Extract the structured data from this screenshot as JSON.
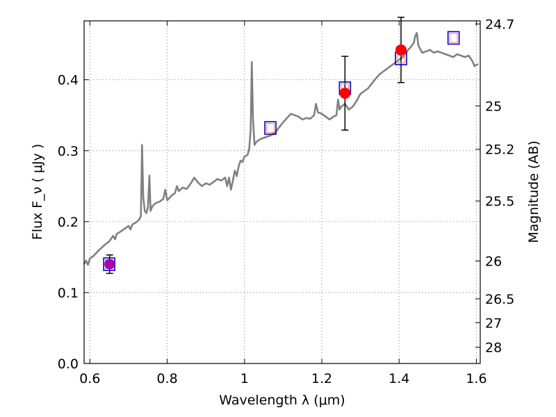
{
  "chart_data": {
    "type": "line",
    "xlabel": "Wavelength  λ (μm)",
    "ylabel": "Flux  F_ν  ( μJy )",
    "ylabel_right": "Magnitude (AB)",
    "xlim": [
      0.585,
      1.61
    ],
    "ylim": [
      0.0,
      0.483
    ],
    "grid": true,
    "x_ticks": [
      0.6,
      0.8,
      1.0,
      1.2,
      1.4,
      1.6
    ],
    "x_tick_labels": [
      "0.6",
      "0.8",
      "1",
      "1.2",
      "1.4",
      "1.6"
    ],
    "y_ticks": [
      0.0,
      0.1,
      0.2,
      0.3,
      0.4
    ],
    "y_tick_labels": [
      "0.0",
      "0.1",
      "0.2",
      "0.3",
      "0.4"
    ],
    "right_ticks": [
      {
        "label": "24.7",
        "flux": 0.4786
      },
      {
        "label": "25",
        "flux": 0.3631
      },
      {
        "label": "25.2",
        "flux": 0.302
      },
      {
        "label": "25.5",
        "flux": 0.2291
      },
      {
        "label": "26",
        "flux": 0.1445
      },
      {
        "label": "26.5",
        "flux": 0.0912
      },
      {
        "label": "27",
        "flux": 0.0575
      },
      {
        "label": "28",
        "flux": 0.0229
      }
    ],
    "colors": {
      "spectrum": "#808080",
      "observed": "#ff0000",
      "model_box": "#0000cc",
      "model_inner": "#ff8888",
      "blend": "#aa00aa",
      "errorbar": "#000000",
      "grid": "#888888"
    },
    "spectrum": [
      [
        0.585,
        0.14
      ],
      [
        0.59,
        0.145
      ],
      [
        0.595,
        0.139
      ],
      [
        0.6,
        0.148
      ],
      [
        0.61,
        0.152
      ],
      [
        0.62,
        0.158
      ],
      [
        0.63,
        0.163
      ],
      [
        0.64,
        0.168
      ],
      [
        0.65,
        0.172
      ],
      [
        0.655,
        0.176
      ],
      [
        0.66,
        0.18
      ],
      [
        0.665,
        0.175
      ],
      [
        0.67,
        0.183
      ],
      [
        0.68,
        0.186
      ],
      [
        0.69,
        0.19
      ],
      [
        0.7,
        0.194
      ],
      [
        0.705,
        0.189
      ],
      [
        0.71,
        0.196
      ],
      [
        0.72,
        0.199
      ],
      [
        0.728,
        0.203
      ],
      [
        0.732,
        0.208
      ],
      [
        0.735,
        0.308
      ],
      [
        0.738,
        0.235
      ],
      [
        0.742,
        0.215
      ],
      [
        0.746,
        0.212
      ],
      [
        0.75,
        0.22
      ],
      [
        0.754,
        0.265
      ],
      [
        0.757,
        0.215
      ],
      [
        0.762,
        0.222
      ],
      [
        0.77,
        0.226
      ],
      [
        0.78,
        0.228
      ],
      [
        0.79,
        0.232
      ],
      [
        0.795,
        0.245
      ],
      [
        0.8,
        0.23
      ],
      [
        0.81,
        0.236
      ],
      [
        0.82,
        0.24
      ],
      [
        0.825,
        0.25
      ],
      [
        0.83,
        0.243
      ],
      [
        0.84,
        0.248
      ],
      [
        0.85,
        0.246
      ],
      [
        0.86,
        0.253
      ],
      [
        0.87,
        0.262
      ],
      [
        0.88,
        0.255
      ],
      [
        0.89,
        0.25
      ],
      [
        0.9,
        0.254
      ],
      [
        0.91,
        0.252
      ],
      [
        0.92,
        0.256
      ],
      [
        0.93,
        0.26
      ],
      [
        0.94,
        0.258
      ],
      [
        0.95,
        0.262
      ],
      [
        0.955,
        0.25
      ],
      [
        0.96,
        0.262
      ],
      [
        0.965,
        0.245
      ],
      [
        0.97,
        0.258
      ],
      [
        0.975,
        0.272
      ],
      [
        0.98,
        0.264
      ],
      [
        0.985,
        0.278
      ],
      [
        0.99,
        0.286
      ],
      [
        0.995,
        0.284
      ],
      [
        1.0,
        0.292
      ],
      [
        1.008,
        0.294
      ],
      [
        1.012,
        0.302
      ],
      [
        1.016,
        0.33
      ],
      [
        1.019,
        0.425
      ],
      [
        1.022,
        0.345
      ],
      [
        1.026,
        0.308
      ],
      [
        1.03,
        0.312
      ],
      [
        1.04,
        0.316
      ],
      [
        1.05,
        0.318
      ],
      [
        1.06,
        0.32
      ],
      [
        1.07,
        0.322
      ],
      [
        1.08,
        0.326
      ],
      [
        1.09,
        0.333
      ],
      [
        1.1,
        0.34
      ],
      [
        1.11,
        0.346
      ],
      [
        1.12,
        0.352
      ],
      [
        1.13,
        0.35
      ],
      [
        1.14,
        0.348
      ],
      [
        1.15,
        0.344
      ],
      [
        1.16,
        0.346
      ],
      [
        1.17,
        0.345
      ],
      [
        1.18,
        0.35
      ],
      [
        1.185,
        0.366
      ],
      [
        1.19,
        0.354
      ],
      [
        1.2,
        0.352
      ],
      [
        1.21,
        0.348
      ],
      [
        1.22,
        0.344
      ],
      [
        1.23,
        0.348
      ],
      [
        1.238,
        0.35
      ],
      [
        1.242,
        0.372
      ],
      [
        1.246,
        0.358
      ],
      [
        1.25,
        0.362
      ],
      [
        1.26,
        0.366
      ],
      [
        1.27,
        0.358
      ],
      [
        1.28,
        0.362
      ],
      [
        1.29,
        0.37
      ],
      [
        1.3,
        0.38
      ],
      [
        1.31,
        0.384
      ],
      [
        1.32,
        0.388
      ],
      [
        1.33,
        0.395
      ],
      [
        1.34,
        0.402
      ],
      [
        1.35,
        0.408
      ],
      [
        1.36,
        0.412
      ],
      [
        1.37,
        0.416
      ],
      [
        1.38,
        0.42
      ],
      [
        1.39,
        0.424
      ],
      [
        1.4,
        0.428
      ],
      [
        1.41,
        0.432
      ],
      [
        1.42,
        0.44
      ],
      [
        1.43,
        0.446
      ],
      [
        1.438,
        0.452
      ],
      [
        1.442,
        0.462
      ],
      [
        1.446,
        0.466
      ],
      [
        1.45,
        0.448
      ],
      [
        1.46,
        0.438
      ],
      [
        1.47,
        0.44
      ],
      [
        1.48,
        0.442
      ],
      [
        1.49,
        0.438
      ],
      [
        1.5,
        0.44
      ],
      [
        1.51,
        0.438
      ],
      [
        1.52,
        0.436
      ],
      [
        1.53,
        0.434
      ],
      [
        1.54,
        0.432
      ],
      [
        1.55,
        0.436
      ],
      [
        1.56,
        0.434
      ],
      [
        1.57,
        0.432
      ],
      [
        1.58,
        0.434
      ],
      [
        1.585,
        0.43
      ],
      [
        1.59,
        0.426
      ],
      [
        1.595,
        0.419
      ],
      [
        1.6,
        0.421
      ],
      [
        1.605,
        0.422
      ]
    ],
    "observed": [
      {
        "x": 1.26,
        "y": 0.381,
        "yerr": 0.052
      },
      {
        "x": 1.405,
        "y": 0.442,
        "yerr": 0.046
      }
    ],
    "blend_point": {
      "x": 0.651,
      "y": 0.14,
      "yerr": 0.013
    },
    "model_boxes": [
      {
        "x": 0.65,
        "y": 0.14
      },
      {
        "x": 1.067,
        "y": 0.332
      },
      {
        "x": 1.26,
        "y": 0.388
      },
      {
        "x": 1.405,
        "y": 0.43
      },
      {
        "x": 1.541,
        "y": 0.459
      }
    ]
  }
}
